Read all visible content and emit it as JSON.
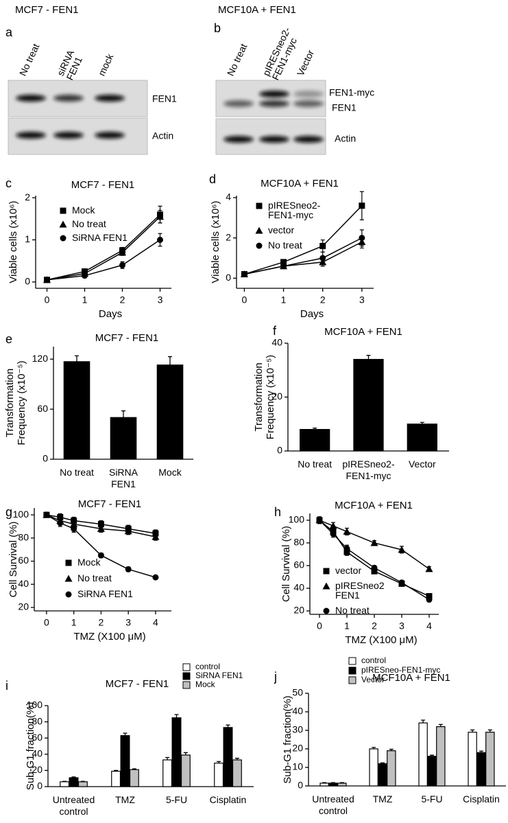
{
  "header": {
    "left": "MCF7 - FEN1",
    "right": "MCF10A + FEN1"
  },
  "blots": [
    {
      "panel": "a",
      "lanes": [
        [
          "No treat"
        ],
        [
          "siRNA",
          "FEN1"
        ],
        [
          "mock"
        ]
      ],
      "bands": [
        "FEN1",
        "Actin"
      ]
    },
    {
      "panel": "b",
      "lanes": [
        [
          "No treat"
        ],
        [
          "pIRESneo2-",
          "FEN1-myc"
        ],
        [
          "Vector"
        ]
      ],
      "bands": [
        "FEN1-myc",
        "FEN1",
        "Actin"
      ]
    }
  ],
  "chart_data": [
    {
      "type": "line",
      "panel": "c",
      "title": "MCF7 - FEN1",
      "xlabel": "Days",
      "ylabel": "Viable cells (x10⁶)",
      "x": [
        0,
        1,
        2,
        3
      ],
      "xlim": [
        -0.3,
        3.3
      ],
      "xticks": [
        0,
        1,
        2,
        3
      ],
      "ylim": [
        -0.15,
        2.05
      ],
      "yticks": [
        0,
        1,
        2
      ],
      "series": [
        {
          "name": "Mock",
          "marker": "square",
          "color": "#000000",
          "values": [
            0.05,
            0.25,
            0.75,
            1.6
          ],
          "errors": [
            0.03,
            0.05,
            0.07,
            0.2
          ]
        },
        {
          "name": "No treat",
          "marker": "triangle",
          "color": "#000000",
          "values": [
            0.05,
            0.2,
            0.7,
            1.55
          ],
          "errors": [
            0.03,
            0.05,
            0.07,
            0.15
          ]
        },
        {
          "name": "SiRNA FEN1",
          "marker": "circle",
          "color": "#000000",
          "values": [
            0.05,
            0.15,
            0.4,
            1.0
          ],
          "errors": [
            0.03,
            0.05,
            0.08,
            0.15
          ]
        }
      ]
    },
    {
      "type": "line",
      "panel": "d",
      "title": "MCF10A + FEN1",
      "xlabel": "Days",
      "ylabel": "Viable cells (x10⁶)",
      "x": [
        0,
        1,
        2,
        3
      ],
      "xlim": [
        -0.2,
        3.3
      ],
      "xticks": [
        0,
        1,
        2,
        3
      ],
      "ylim": [
        -0.5,
        4.1
      ],
      "yticks": [
        0,
        2,
        4
      ],
      "series": [
        {
          "name": [
            "pIRESneo2-",
            "FEN1-myc"
          ],
          "marker": "square",
          "color": "#000000",
          "values": [
            0.2,
            0.8,
            1.6,
            3.6
          ],
          "errors": [
            0.1,
            0.1,
            0.3,
            0.7
          ]
        },
        {
          "name": "vector",
          "marker": "triangle",
          "color": "#000000",
          "values": [
            0.2,
            0.6,
            0.8,
            1.8
          ],
          "errors": [
            0.1,
            0.1,
            0.2,
            0.3
          ]
        },
        {
          "name": "No treat",
          "marker": "circle",
          "color": "#000000",
          "values": [
            0.2,
            0.6,
            1.0,
            2.0
          ],
          "errors": [
            0.1,
            0.1,
            0.3,
            0.4
          ]
        }
      ]
    },
    {
      "type": "bar",
      "panel": "e",
      "title": "MCF7 - FEN1",
      "ylabel": [
        "Transformation",
        "Frequency (x10⁻⁵)"
      ],
      "categories": [
        "No treat",
        [
          "SiRNA",
          "FEN1"
        ],
        "Mock"
      ],
      "values": [
        117,
        50,
        113
      ],
      "errors": [
        7,
        8,
        10
      ],
      "color": "#000000",
      "ylim": [
        0,
        135
      ],
      "yticks": [
        0,
        60,
        120
      ]
    },
    {
      "type": "bar",
      "panel": "f",
      "title": "MCF10A + FEN1",
      "ylabel": [
        "Transformation",
        "Frequency (x10⁻⁵)"
      ],
      "categories": [
        "No treat",
        [
          "pIRESneo2-",
          "FEN1-myc"
        ],
        "Vector"
      ],
      "values": [
        8,
        34,
        10
      ],
      "errors": [
        0.5,
        1.5,
        0.6
      ],
      "color": "#000000",
      "ylim": [
        0,
        40
      ],
      "yticks": [
        0,
        20,
        40
      ]
    },
    {
      "type": "line",
      "panel": "g",
      "title": "MCF7 - FEN1",
      "xlabel": "TMZ (X100 μM)",
      "ylabel": "Cell Survival (%)",
      "x": [
        0,
        0.5,
        1,
        2,
        3,
        4
      ],
      "xlim": [
        -0.45,
        4.58
      ],
      "xticks": [
        0,
        1,
        2,
        3,
        4
      ],
      "ylim": [
        17,
        106
      ],
      "yticks": [
        20,
        40,
        60,
        80,
        100
      ],
      "series": [
        {
          "name": "Mock",
          "marker": "square",
          "color": "#000000",
          "values": [
            100,
            98,
            95,
            92,
            88,
            84
          ],
          "errors": [
            2,
            3,
            3,
            3,
            3,
            3
          ]
        },
        {
          "name": "No treat",
          "marker": "triangle",
          "color": "#000000",
          "values": [
            100,
            95,
            92,
            88,
            86,
            81
          ],
          "errors": [
            2,
            3,
            3,
            3,
            3,
            3
          ]
        },
        {
          "name": "SiRNA FEN1",
          "marker": "circle",
          "color": "#000000",
          "values": [
            100,
            93,
            88,
            65,
            53,
            46
          ],
          "errors": [
            2,
            3,
            3,
            2,
            2,
            1
          ]
        }
      ]
    },
    {
      "type": "line",
      "panel": "h",
      "title": "MCF10A + FEN1",
      "xlabel": "TMZ (X100 μM)",
      "ylabel": "Cell Survival (%)",
      "x": [
        0,
        0.5,
        1,
        2,
        3,
        4
      ],
      "xlim": [
        -0.35,
        4.35
      ],
      "xticks": [
        0,
        1,
        2,
        3,
        4
      ],
      "ylim": [
        17,
        106
      ],
      "yticks": [
        20,
        40,
        60,
        80,
        100
      ],
      "series": [
        {
          "name": "vector",
          "marker": "square",
          "color": "#000000",
          "values": [
            100,
            90,
            72,
            55,
            44,
            33
          ],
          "errors": [
            3,
            3,
            3,
            2,
            2,
            2
          ]
        },
        {
          "name": [
            "pIRESneo2",
            "FEN1"
          ],
          "marker": "triangle",
          "color": "#000000",
          "values": [
            100,
            95,
            90,
            80,
            74,
            57
          ],
          "errors": [
            3,
            3,
            3,
            2,
            3,
            2
          ]
        },
        {
          "name": "No treat",
          "marker": "circle",
          "color": "#000000",
          "values": [
            100,
            88,
            75,
            58,
            45,
            30
          ],
          "errors": [
            3,
            3,
            3,
            2,
            2,
            2
          ]
        }
      ]
    },
    {
      "type": "bar",
      "panel": "i",
      "title": "MCF7 - FEN1",
      "ylabel": "Sub-G1 fraction(%)",
      "categories": [
        [
          "Untreated",
          "control"
        ],
        "TMZ",
        "5-FU",
        "Cisplatin"
      ],
      "ylim": [
        0,
        100
      ],
      "yticks": [
        0,
        20,
        40,
        60,
        80,
        100
      ],
      "series": [
        {
          "name": "control",
          "color": "#ffffff",
          "values": [
            6,
            19,
            33,
            29
          ],
          "errors": [
            0.5,
            1,
            3,
            2
          ]
        },
        {
          "name": "SiRNA FEN1",
          "color": "#000000",
          "values": [
            11,
            63,
            85,
            73
          ],
          "errors": [
            1,
            3,
            4,
            3
          ]
        },
        {
          "name": "Mock",
          "color": "#c0c0c0",
          "values": [
            6,
            21,
            39,
            33
          ],
          "errors": [
            0.5,
            1,
            3,
            2
          ]
        }
      ]
    },
    {
      "type": "bar",
      "panel": "j",
      "title": "MCF10A + FEN1",
      "ylabel": "Sub-G1 fraction(%)",
      "categories": [
        [
          "Untreated",
          "control"
        ],
        "TMZ",
        "5-FU",
        "Cisplatin"
      ],
      "ylim": [
        0,
        50
      ],
      "yticks": [
        0,
        10,
        20,
        30,
        40,
        50
      ],
      "series": [
        {
          "name": "control",
          "color": "#ffffff",
          "values": [
            1.5,
            20,
            34,
            29
          ],
          "errors": [
            0.3,
            0.8,
            1.5,
            1.2
          ]
        },
        {
          "name": "pIRESneo-FEN1-myc",
          "color": "#000000",
          "values": [
            1.5,
            12,
            16,
            18
          ],
          "errors": [
            0.3,
            0.5,
            0.6,
            0.8
          ]
        },
        {
          "name": "Vector",
          "color": "#c0c0c0",
          "values": [
            1.5,
            19,
            32,
            29
          ],
          "errors": [
            0.3,
            0.8,
            1.2,
            1.2
          ]
        }
      ]
    }
  ]
}
